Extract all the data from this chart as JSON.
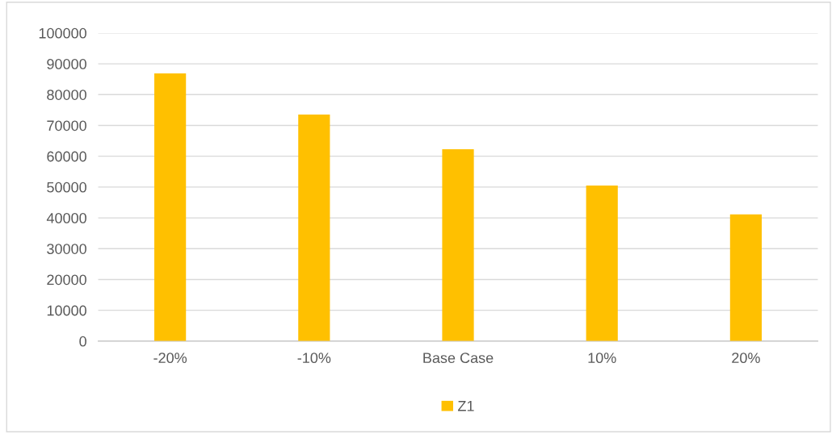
{
  "chart_data": {
    "type": "bar",
    "categories": [
      "-20%",
      "-10%",
      "Base Case",
      "10%",
      "20%"
    ],
    "series": [
      {
        "name": "Z1",
        "color": "#ffc000",
        "values": [
          86900,
          73500,
          62300,
          50500,
          41100
        ]
      }
    ],
    "ylim": [
      0,
      100000
    ],
    "yticks": [
      0,
      10000,
      20000,
      30000,
      40000,
      50000,
      60000,
      70000,
      80000,
      90000,
      100000
    ],
    "grid": "y",
    "legend": "bottom"
  }
}
